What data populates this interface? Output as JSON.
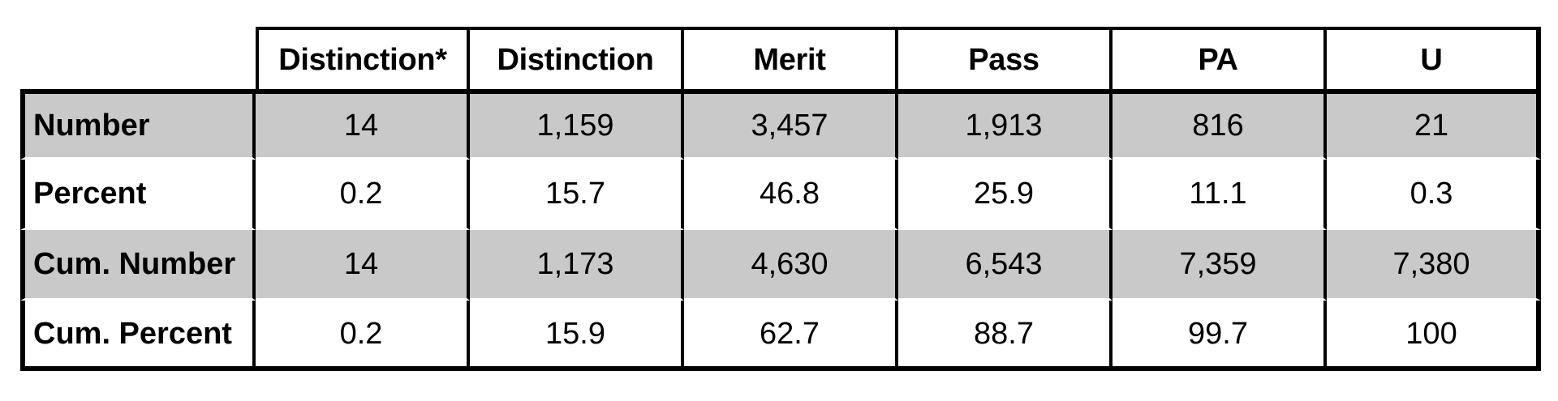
{
  "table": {
    "corner_label": "",
    "columns": [
      "Distinction*",
      "Distinction",
      "Merit",
      "Pass",
      "PA",
      "U"
    ],
    "rows": [
      {
        "label": "Number",
        "shaded": true,
        "values": [
          "14",
          "1,159",
          "3,457",
          "1,913",
          "816",
          "21"
        ]
      },
      {
        "label": "Percent",
        "shaded": false,
        "values": [
          "0.2",
          "15.7",
          "46.8",
          "25.9",
          "11.1",
          "0.3"
        ]
      },
      {
        "label": "Cum. Number",
        "shaded": true,
        "values": [
          "14",
          "1,173",
          "4,630",
          "6,543",
          "7,359",
          "7,380"
        ]
      },
      {
        "label": "Cum. Percent",
        "shaded": false,
        "values": [
          "0.2",
          "15.9",
          "62.7",
          "88.7",
          "99.7",
          "100"
        ]
      }
    ],
    "colors": {
      "shaded_row": "#c9c9c9",
      "border": "#000000",
      "background": "#ffffff",
      "text": "#000000"
    }
  }
}
